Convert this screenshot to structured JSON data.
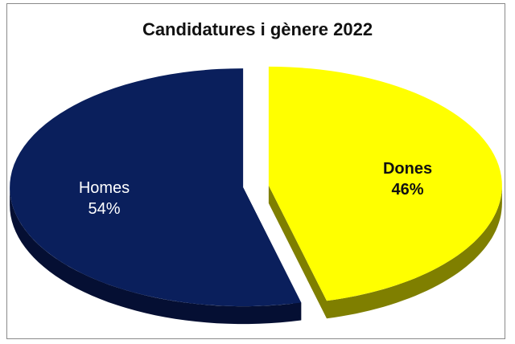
{
  "chart_data": {
    "type": "pie",
    "title": "Candidatures i gènere 2022",
    "categories": [
      "Dones",
      "Homes"
    ],
    "values": [
      46,
      54
    ],
    "value_labels": [
      "46%",
      "54%"
    ],
    "colors": {
      "Dones": "#ffff00",
      "Homes": "#0a1f5c"
    },
    "side_colors": {
      "Dones": "#7f7f00",
      "Homes": "#050f33"
    },
    "label_colors": {
      "Dones": "#111111",
      "Homes": "#ffffff"
    },
    "style": "3d-exploded",
    "legend": "none"
  }
}
